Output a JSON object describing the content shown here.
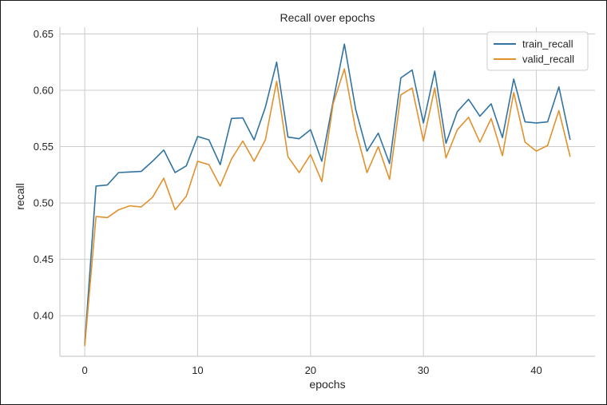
{
  "chart_data": {
    "type": "line",
    "title": "Recall over epochs",
    "xlabel": "epochs",
    "ylabel": "recall",
    "xlim": [
      -2.2,
      45.2
    ],
    "ylim": [
      0.364,
      0.656
    ],
    "xticks": [
      0,
      10,
      20,
      30,
      40
    ],
    "yticks": [
      0.4,
      0.45,
      0.5,
      0.55,
      0.6,
      0.65
    ],
    "ytick_labels": [
      "0.40",
      "0.45",
      "0.50",
      "0.55",
      "0.60",
      "0.65"
    ],
    "grid": true,
    "legend_position": "top-right",
    "x": [
      0,
      1,
      2,
      3,
      4,
      5,
      6,
      7,
      8,
      9,
      10,
      11,
      12,
      13,
      14,
      15,
      16,
      17,
      18,
      19,
      20,
      21,
      22,
      23,
      24,
      25,
      26,
      27,
      28,
      29,
      30,
      31,
      32,
      33,
      34,
      35,
      36,
      37,
      38,
      39,
      40,
      41,
      42,
      43
    ],
    "series": [
      {
        "name": "train_recall",
        "color": "#3274a1",
        "values": [
          0.375,
          0.515,
          0.516,
          0.527,
          0.5275,
          0.528,
          0.537,
          0.547,
          0.527,
          0.533,
          0.559,
          0.556,
          0.534,
          0.575,
          0.5755,
          0.556,
          0.585,
          0.625,
          0.5585,
          0.557,
          0.565,
          0.537,
          0.59,
          0.641,
          0.583,
          0.546,
          0.562,
          0.535,
          0.611,
          0.618,
          0.571,
          0.617,
          0.553,
          0.581,
          0.592,
          0.577,
          0.588,
          0.558,
          0.61,
          0.572,
          0.571,
          0.572,
          0.603,
          0.556
        ]
      },
      {
        "name": "valid_recall",
        "color": "#e1912d",
        "values": [
          0.373,
          0.488,
          0.487,
          0.494,
          0.4975,
          0.4965,
          0.505,
          0.522,
          0.494,
          0.506,
          0.537,
          0.534,
          0.515,
          0.539,
          0.555,
          0.537,
          0.556,
          0.608,
          0.541,
          0.527,
          0.543,
          0.519,
          0.588,
          0.619,
          0.565,
          0.527,
          0.55,
          0.521,
          0.596,
          0.602,
          0.555,
          0.602,
          0.54,
          0.565,
          0.576,
          0.554,
          0.575,
          0.542,
          0.598,
          0.554,
          0.546,
          0.551,
          0.582,
          0.541
        ]
      }
    ]
  }
}
